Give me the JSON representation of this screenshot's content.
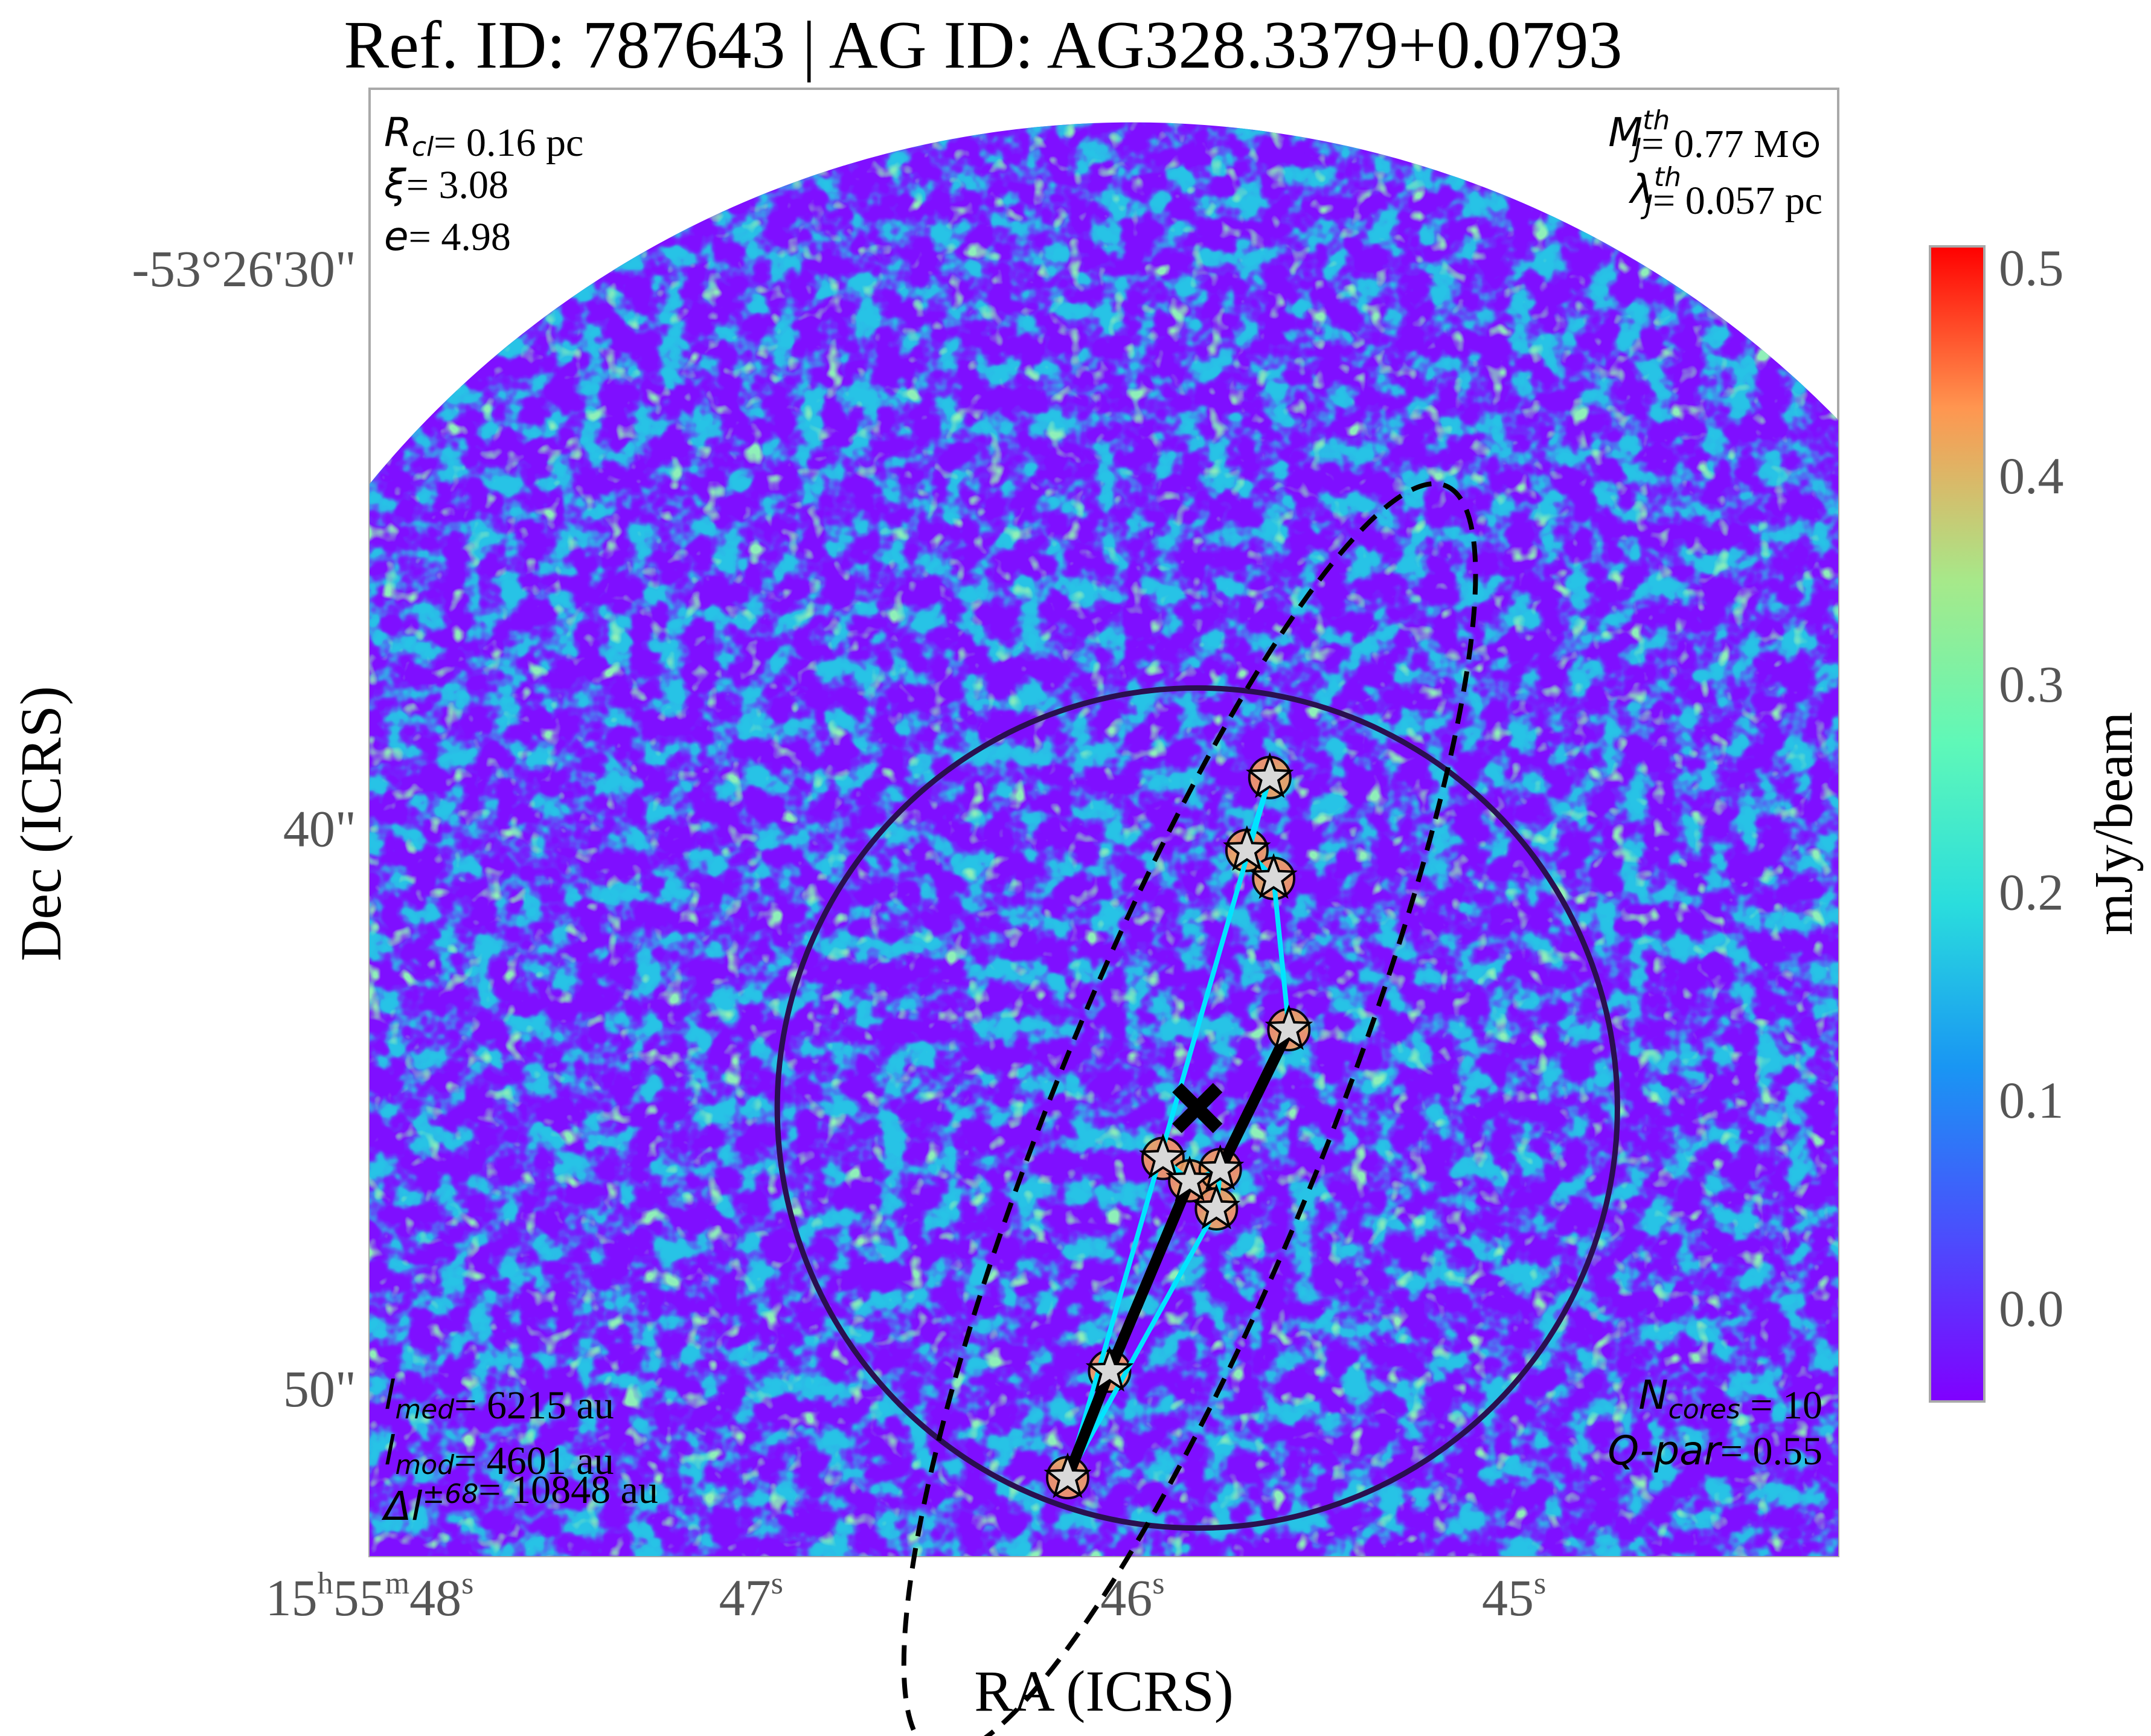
{
  "chart_data": {
    "type": "heatmap",
    "title": "Ref. ID: 787643 | AG ID: AG328.3379+0.0793",
    "xlabel": "RA (ICRS)",
    "ylabel": "Dec (ICRS)",
    "x_ticks": [
      {
        "label": "15h55m48s",
        "sec": 48
      },
      {
        "label": "47s",
        "sec": 47
      },
      {
        "label": "46s",
        "sec": 46
      },
      {
        "label": "45s",
        "sec": 45
      }
    ],
    "y_ticks": [
      {
        "label": "-53°26'30\"",
        "arcsec": 30
      },
      {
        "label": "40\"",
        "arcsec": 40
      },
      {
        "label": "50\"",
        "arcsec": 50
      }
    ],
    "colorbar": {
      "label": "mJy/beam",
      "colormap": "rainbow",
      "range": [
        -0.045,
        0.51
      ],
      "ticks": [
        0.0,
        0.1,
        0.2,
        0.3,
        0.4,
        0.5
      ],
      "tick_labels": [
        "0.0",
        "0.1",
        "0.2",
        "0.3",
        "0.4",
        "0.5"
      ]
    },
    "annotations": {
      "top_left": [
        {
          "sym": "R",
          "sub": "cl",
          "text": "= 0.16 pc"
        },
        {
          "sym": "ξ",
          "text": "= 3.08"
        },
        {
          "sym": "e",
          "text": "= 4.98"
        }
      ],
      "top_right": [
        {
          "sym": "M",
          "sub": "J",
          "sup": "th",
          "text": "= 0.77 M⊙"
        },
        {
          "sym": "λ",
          "sub": "J",
          "sup": "th",
          "text": "= 0.057 pc"
        }
      ],
      "bottom_left": [
        {
          "sym": "l",
          "sub": "med",
          "text": "= 6215 au"
        },
        {
          "sym": "l",
          "sub": "mod",
          "text": "= 4601 au"
        },
        {
          "sym": "Δl",
          "sup": "±68",
          "text": "= 10848 au"
        }
      ],
      "bottom_right": [
        {
          "sym": "N",
          "sub": "cores",
          "text": " = 10"
        },
        {
          "sym": "Q-par",
          "text": "= 0.55"
        }
      ]
    },
    "cores": [
      {
        "ra_s": 45.64,
        "dec_arcsec": 39.1
      },
      {
        "ra_s": 45.7,
        "dec_arcsec": 40.4
      },
      {
        "ra_s": 45.63,
        "dec_arcsec": 40.9
      },
      {
        "ra_s": 45.59,
        "dec_arcsec": 43.6
      },
      {
        "ra_s": 45.92,
        "dec_arcsec": 45.9
      },
      {
        "ra_s": 45.85,
        "dec_arcsec": 46.3
      },
      {
        "ra_s": 45.77,
        "dec_arcsec": 46.1
      },
      {
        "ra_s": 45.78,
        "dec_arcsec": 46.8
      },
      {
        "ra_s": 46.06,
        "dec_arcsec": 49.7
      },
      {
        "ra_s": 46.17,
        "dec_arcsec": 51.6
      }
    ],
    "mst_edges": [
      [
        0,
        1
      ],
      [
        1,
        2
      ],
      [
        2,
        3
      ],
      [
        3,
        6
      ],
      [
        6,
        5
      ],
      [
        5,
        4
      ],
      [
        6,
        7
      ],
      [
        5,
        8
      ],
      [
        8,
        9
      ],
      [
        9,
        0
      ],
      [
        7,
        9
      ]
    ],
    "thick_edges": [
      [
        3,
        6
      ],
      [
        5,
        8
      ],
      [
        8,
        9
      ]
    ],
    "cluster_center": {
      "ra_s": 45.83,
      "dec_arcsec": 45.0
    },
    "cluster_circle_radius_arcsec": 7.5,
    "fit_ellipse": {
      "ra_s": 45.85,
      "dec_arcsec": 45.2,
      "semi_major_arcsec": 12.2,
      "semi_minor_arcsec": 2.45,
      "tilt_deg": -68
    },
    "field_circle": {
      "ra_s": 46.0,
      "dec_arcsec": 45.0,
      "radius_arcsec": 17.6
    },
    "xlim_ra_s": [
      48.0,
      44.15
    ],
    "ylim_dec_arcsec": [
      53.0,
      26.8
    ]
  }
}
